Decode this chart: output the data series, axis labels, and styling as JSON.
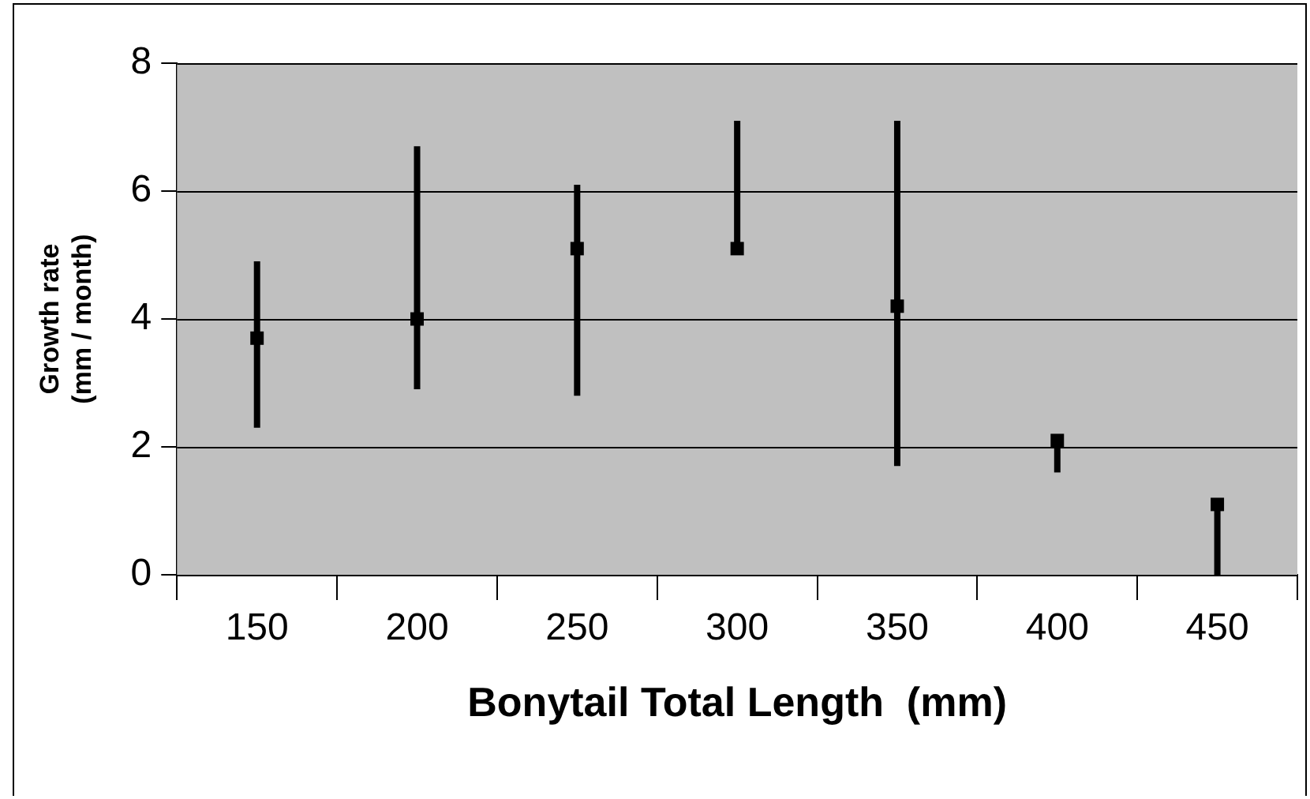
{
  "chart_data": {
    "type": "scatter",
    "xlabel": "Bonytail Total Length  (mm)",
    "ylabel": "Growth rate\n(mm / month)",
    "categories": [
      "150",
      "200",
      "250",
      "300",
      "350",
      "400",
      "450"
    ],
    "values": [
      3.7,
      4.0,
      5.1,
      5.1,
      4.2,
      2.1,
      1.1
    ],
    "errors": [
      [
        2.3,
        4.9
      ],
      [
        2.9,
        6.7
      ],
      [
        2.8,
        6.1
      ],
      [
        5.0,
        7.1
      ],
      [
        1.7,
        7.1
      ],
      [
        1.6,
        2.1
      ],
      [
        0,
        1.1
      ]
    ],
    "color": "#000000",
    "marker": "square",
    "ylim": [
      0,
      8
    ],
    "yticks": [
      0,
      2,
      4,
      6,
      8
    ],
    "grid": "y",
    "legend": false
  }
}
